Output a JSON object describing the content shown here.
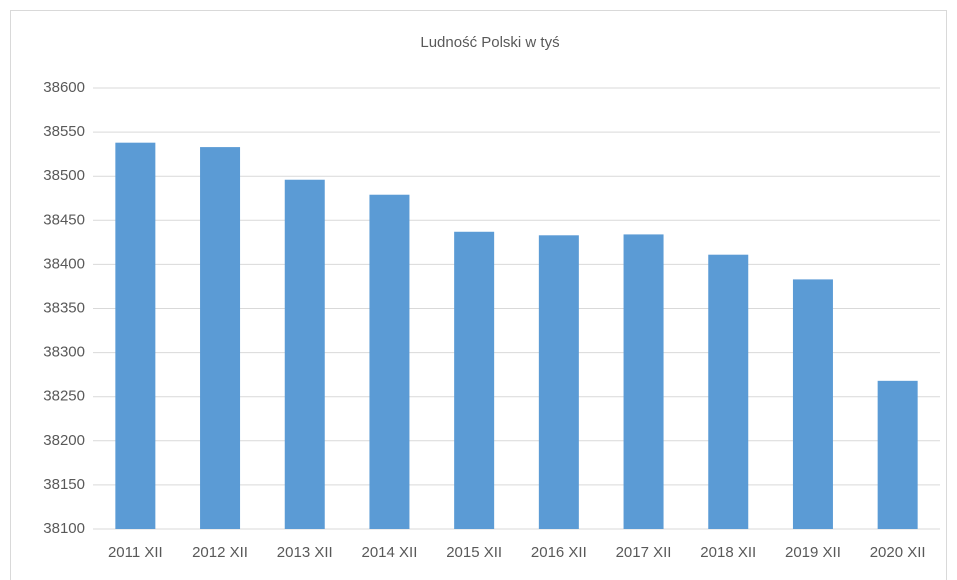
{
  "chart_data": {
    "type": "bar",
    "title": "Ludność Polski w tyś",
    "categories": [
      "2011 XII",
      "2012 XII",
      "2013 XII",
      "2014 XII",
      "2015 XII",
      "2016 XII",
      "2017 XII",
      "2018 XII",
      "2019 XII",
      "2020 XII"
    ],
    "values": [
      38538,
      38533,
      38496,
      38479,
      38437,
      38433,
      38434,
      38411,
      38383,
      38268
    ],
    "color": "#5b9bd5",
    "ylim": [
      38100,
      38600
    ],
    "yticks": [
      38100,
      38150,
      38200,
      38250,
      38300,
      38350,
      38400,
      38450,
      38500,
      38550,
      38600
    ],
    "grid": true
  }
}
